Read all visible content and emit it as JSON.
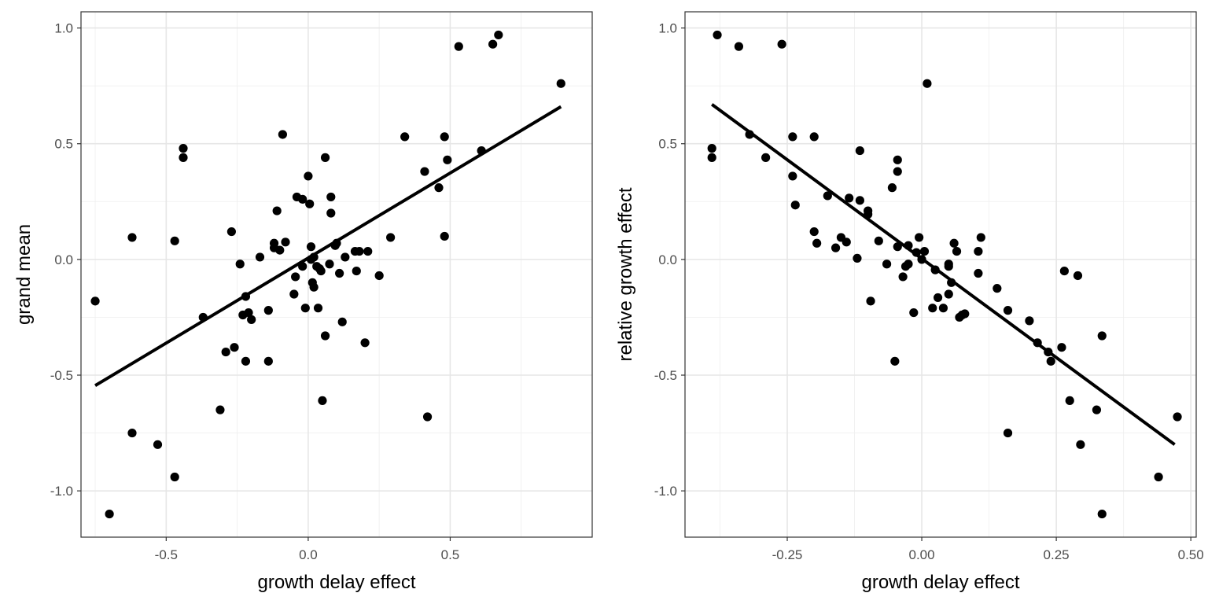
{
  "chart_data": [
    {
      "type": "scatter",
      "title": "",
      "xlabel": "growth delay effect",
      "ylabel": "grand mean",
      "xlim": [
        -0.8,
        1.0
      ],
      "ylim": [
        -1.2,
        1.07
      ],
      "xticks": [
        -0.5,
        0.0,
        0.5
      ],
      "xtick_labels": [
        "-0.5",
        "0.0",
        "0.5"
      ],
      "yticks": [
        -1.0,
        -0.5,
        0.0,
        0.5,
        1.0
      ],
      "ytick_labels": [
        "-1.0",
        "-0.5",
        "0.0",
        "0.5",
        "1.0"
      ],
      "fit_line": {
        "x": [
          -0.75,
          0.89
        ],
        "y": [
          -0.545,
          0.66
        ]
      },
      "points": [
        [
          -0.75,
          -0.18
        ],
        [
          -0.7,
          -1.1
        ],
        [
          -0.62,
          0.095
        ],
        [
          -0.62,
          -0.75
        ],
        [
          -0.53,
          -0.8
        ],
        [
          -0.47,
          0.08
        ],
        [
          -0.47,
          -0.94
        ],
        [
          -0.44,
          0.48
        ],
        [
          -0.44,
          0.44
        ],
        [
          -0.37,
          -0.25
        ],
        [
          -0.31,
          -0.65
        ],
        [
          -0.29,
          -0.4
        ],
        [
          -0.27,
          0.12
        ],
        [
          -0.26,
          -0.38
        ],
        [
          -0.24,
          -0.02
        ],
        [
          -0.22,
          -0.44
        ],
        [
          -0.22,
          -0.16
        ],
        [
          -0.23,
          -0.24
        ],
        [
          -0.21,
          -0.23
        ],
        [
          -0.2,
          -0.26
        ],
        [
          -0.17,
          0.01
        ],
        [
          -0.14,
          -0.22
        ],
        [
          -0.14,
          -0.44
        ],
        [
          -0.12,
          0.07
        ],
        [
          -0.12,
          0.05
        ],
        [
          -0.1,
          0.04
        ],
        [
          -0.11,
          0.21
        ],
        [
          -0.09,
          0.54
        ],
        [
          -0.08,
          0.075
        ],
        [
          -0.05,
          -0.15
        ],
        [
          -0.045,
          -0.075
        ],
        [
          -0.04,
          0.27
        ],
        [
          -0.02,
          0.26
        ],
        [
          -0.02,
          -0.03
        ],
        [
          -0.01,
          -0.21
        ],
        [
          0.0,
          0.36
        ],
        [
          0.005,
          0.24
        ],
        [
          0.01,
          0.055
        ],
        [
          0.01,
          0.0
        ],
        [
          0.015,
          -0.1
        ],
        [
          0.02,
          -0.12
        ],
        [
          0.02,
          0.01
        ],
        [
          0.03,
          -0.03
        ],
        [
          0.035,
          -0.21
        ],
        [
          0.04,
          -0.04
        ],
        [
          0.045,
          -0.05
        ],
        [
          0.05,
          -0.61
        ],
        [
          0.06,
          0.44
        ],
        [
          0.06,
          -0.33
        ],
        [
          0.075,
          -0.02
        ],
        [
          0.08,
          0.27
        ],
        [
          0.08,
          0.2
        ],
        [
          0.095,
          0.06
        ],
        [
          0.1,
          0.07
        ],
        [
          0.11,
          -0.06
        ],
        [
          0.12,
          -0.27
        ],
        [
          0.13,
          0.01
        ],
        [
          0.165,
          0.035
        ],
        [
          0.17,
          -0.05
        ],
        [
          0.18,
          0.035
        ],
        [
          0.2,
          -0.36
        ],
        [
          0.21,
          0.035
        ],
        [
          0.25,
          -0.07
        ],
        [
          0.29,
          0.095
        ],
        [
          0.34,
          0.53
        ],
        [
          0.41,
          0.38
        ],
        [
          0.42,
          -0.68
        ],
        [
          0.46,
          0.31
        ],
        [
          0.48,
          0.53
        ],
        [
          0.48,
          0.1
        ],
        [
          0.49,
          0.43
        ],
        [
          0.53,
          0.92
        ],
        [
          0.61,
          0.47
        ],
        [
          0.65,
          0.93
        ],
        [
          0.67,
          0.97
        ],
        [
          0.89,
          0.76
        ]
      ]
    },
    {
      "type": "scatter",
      "title": "",
      "xlabel": "growth delay effect",
      "ylabel": "relative growth effect",
      "xlim": [
        -0.44,
        0.51
      ],
      "ylim": [
        -1.2,
        1.07
      ],
      "xticks": [
        -0.25,
        0.0,
        0.25,
        0.5
      ],
      "xtick_labels": [
        "-0.25",
        "0.00",
        "0.25",
        "0.50"
      ],
      "yticks": [
        -1.0,
        -0.5,
        0.0,
        0.5,
        1.0
      ],
      "ytick_labels": [
        "-1.0",
        "-0.5",
        "0.0",
        "0.5",
        "1.0"
      ],
      "fit_line": {
        "x": [
          -0.39,
          0.47
        ],
        "y": [
          0.67,
          -0.8
        ]
      },
      "points": [
        [
          -0.39,
          0.48
        ],
        [
          -0.39,
          0.44
        ],
        [
          -0.38,
          0.97
        ],
        [
          -0.34,
          0.92
        ],
        [
          -0.32,
          0.54
        ],
        [
          -0.29,
          0.44
        ],
        [
          -0.26,
          0.93
        ],
        [
          -0.24,
          0.53
        ],
        [
          -0.24,
          0.36
        ],
        [
          -0.235,
          0.235
        ],
        [
          -0.2,
          0.12
        ],
        [
          -0.2,
          0.53
        ],
        [
          -0.195,
          0.07
        ],
        [
          -0.175,
          0.275
        ],
        [
          -0.16,
          0.05
        ],
        [
          -0.15,
          0.095
        ],
        [
          -0.14,
          0.075
        ],
        [
          -0.135,
          0.265
        ],
        [
          -0.12,
          0.005
        ],
        [
          -0.115,
          0.47
        ],
        [
          -0.115,
          0.255
        ],
        [
          -0.1,
          0.195
        ],
        [
          -0.1,
          0.21
        ],
        [
          -0.095,
          -0.18
        ],
        [
          -0.08,
          0.08
        ],
        [
          -0.065,
          -0.02
        ],
        [
          -0.055,
          0.31
        ],
        [
          -0.05,
          -0.44
        ],
        [
          -0.045,
          0.055
        ],
        [
          -0.045,
          0.38
        ],
        [
          -0.045,
          0.43
        ],
        [
          -0.035,
          -0.075
        ],
        [
          -0.03,
          -0.03
        ],
        [
          -0.025,
          0.06
        ],
        [
          -0.025,
          -0.02
        ],
        [
          -0.015,
          -0.23
        ],
        [
          -0.01,
          0.03
        ],
        [
          -0.005,
          0.095
        ],
        [
          0.0,
          0.0
        ],
        [
          0.005,
          0.035
        ],
        [
          0.01,
          0.76
        ],
        [
          0.02,
          -0.21
        ],
        [
          0.025,
          -0.045
        ],
        [
          0.03,
          -0.165
        ],
        [
          0.04,
          -0.21
        ],
        [
          0.05,
          -0.15
        ],
        [
          0.05,
          -0.03
        ],
        [
          0.05,
          -0.02
        ],
        [
          0.055,
          -0.1
        ],
        [
          0.06,
          0.07
        ],
        [
          0.065,
          0.035
        ],
        [
          0.07,
          -0.25
        ],
        [
          0.075,
          -0.24
        ],
        [
          0.08,
          -0.235
        ],
        [
          0.105,
          0.035
        ],
        [
          0.105,
          -0.06
        ],
        [
          0.11,
          0.095
        ],
        [
          0.14,
          -0.125
        ],
        [
          0.16,
          -0.22
        ],
        [
          0.16,
          -0.75
        ],
        [
          0.2,
          -0.265
        ],
        [
          0.215,
          -0.36
        ],
        [
          0.235,
          -0.4
        ],
        [
          0.24,
          -0.44
        ],
        [
          0.26,
          -0.38
        ],
        [
          0.265,
          -0.05
        ],
        [
          0.275,
          -0.61
        ],
        [
          0.29,
          -0.07
        ],
        [
          0.295,
          -0.8
        ],
        [
          0.325,
          -0.65
        ],
        [
          0.335,
          -0.33
        ],
        [
          0.335,
          -1.1
        ],
        [
          0.44,
          -0.94
        ],
        [
          0.475,
          -0.68
        ]
      ]
    }
  ]
}
